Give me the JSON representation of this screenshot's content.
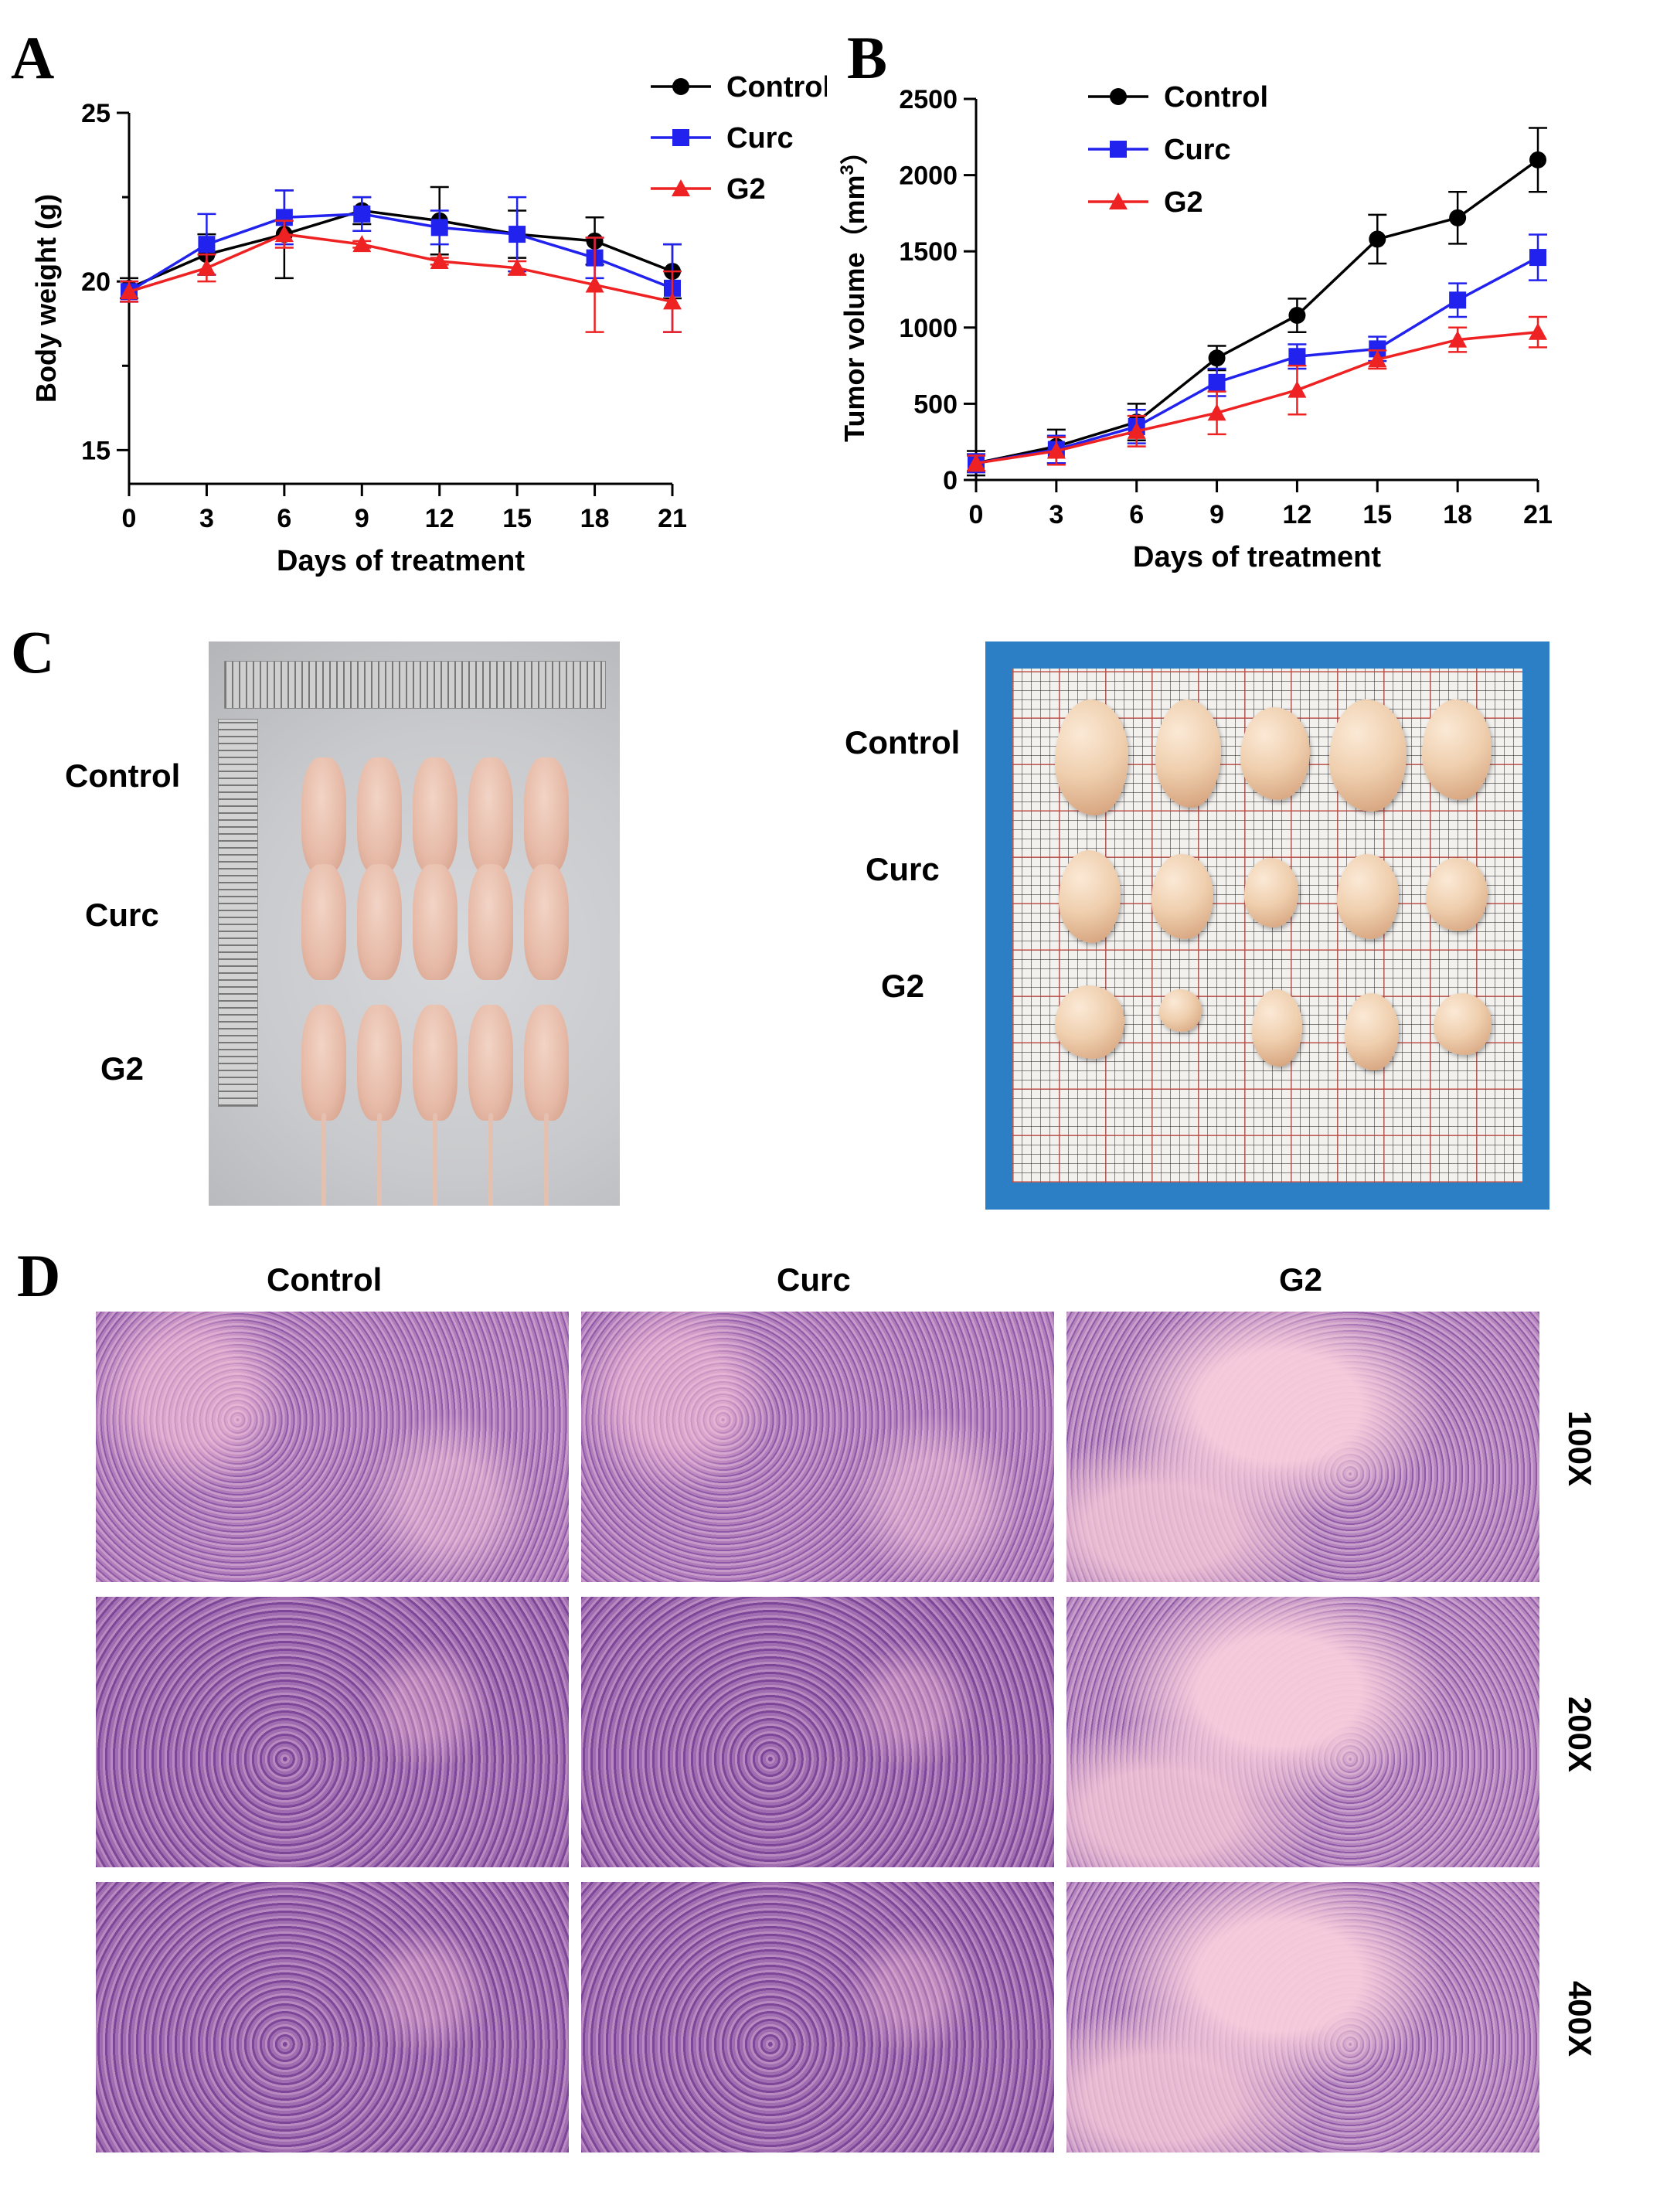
{
  "panels": {
    "a": "A",
    "b": "B",
    "c": "C",
    "d": "D"
  },
  "groups": [
    "Control",
    "Curc",
    "G2"
  ],
  "colors": {
    "control": "#000000",
    "curc": "#2222ee",
    "g2": "#ee2222"
  },
  "magnifications": [
    "100X",
    "200X",
    "400X"
  ],
  "chart_data": [
    {
      "type": "line",
      "title": "",
      "xlabel": "Days of treatment",
      "ylabel": "Body weight (g)",
      "x": [
        0,
        3,
        6,
        9,
        12,
        15,
        18,
        21
      ],
      "xticks": [
        "0",
        "3",
        "6",
        "9",
        "12",
        "15",
        "18",
        "21"
      ],
      "yticks": [
        "15",
        "20",
        "25"
      ],
      "ytick_values": [
        15,
        20,
        25
      ],
      "xlim": [
        0,
        21
      ],
      "ylim": [
        14,
        25
      ],
      "legend": "top-right",
      "series": [
        {
          "name": "Control",
          "marker": "circle",
          "values": [
            19.8,
            20.8,
            21.4,
            22.1,
            21.8,
            21.4,
            21.2,
            20.3
          ],
          "err": [
            0.3,
            0.6,
            1.3,
            0.4,
            1.0,
            0.7,
            0.7,
            0.8
          ]
        },
        {
          "name": "Curc",
          "marker": "square",
          "values": [
            19.7,
            21.1,
            21.9,
            22.0,
            21.6,
            21.4,
            20.7,
            19.8
          ],
          "err": [
            0.3,
            0.9,
            0.8,
            0.5,
            0.5,
            1.1,
            0.6,
            1.3
          ]
        },
        {
          "name": "G2",
          "marker": "triangle",
          "values": [
            19.7,
            20.4,
            21.4,
            21.1,
            20.6,
            20.4,
            19.9,
            19.4
          ],
          "err": [
            0.3,
            0.4,
            0.4,
            0.1,
            0.1,
            0.2,
            1.4,
            0.9
          ]
        }
      ]
    },
    {
      "type": "line",
      "title": "",
      "xlabel": "Days of treatment",
      "ylabel": "Tumor volume（mm",
      "ylabel_sup": "3",
      "ylabel_close": "）",
      "x": [
        0,
        3,
        6,
        9,
        12,
        15,
        18,
        21
      ],
      "xticks": [
        "0",
        "3",
        "6",
        "9",
        "12",
        "15",
        "18",
        "21"
      ],
      "yticks": [
        "0",
        "500",
        "1000",
        "1500",
        "2000",
        "2500"
      ],
      "ytick_values": [
        0,
        500,
        1000,
        1500,
        2000,
        2500
      ],
      "xlim": [
        0,
        21
      ],
      "ylim": [
        0,
        2500
      ],
      "legend": "top-left",
      "series": [
        {
          "name": "Control",
          "marker": "circle",
          "values": [
            110,
            220,
            380,
            800,
            1080,
            1580,
            1720,
            2100
          ],
          "err": [
            80,
            110,
            120,
            80,
            110,
            160,
            170,
            210
          ]
        },
        {
          "name": "Curc",
          "marker": "square",
          "values": [
            110,
            200,
            350,
            640,
            810,
            860,
            1180,
            1460
          ],
          "err": [
            60,
            90,
            110,
            90,
            80,
            80,
            110,
            150
          ]
        },
        {
          "name": "G2",
          "marker": "triangle",
          "values": [
            110,
            190,
            320,
            440,
            590,
            790,
            920,
            970
          ],
          "err": [
            50,
            90,
            100,
            140,
            160,
            60,
            80,
            100
          ]
        }
      ]
    }
  ]
}
